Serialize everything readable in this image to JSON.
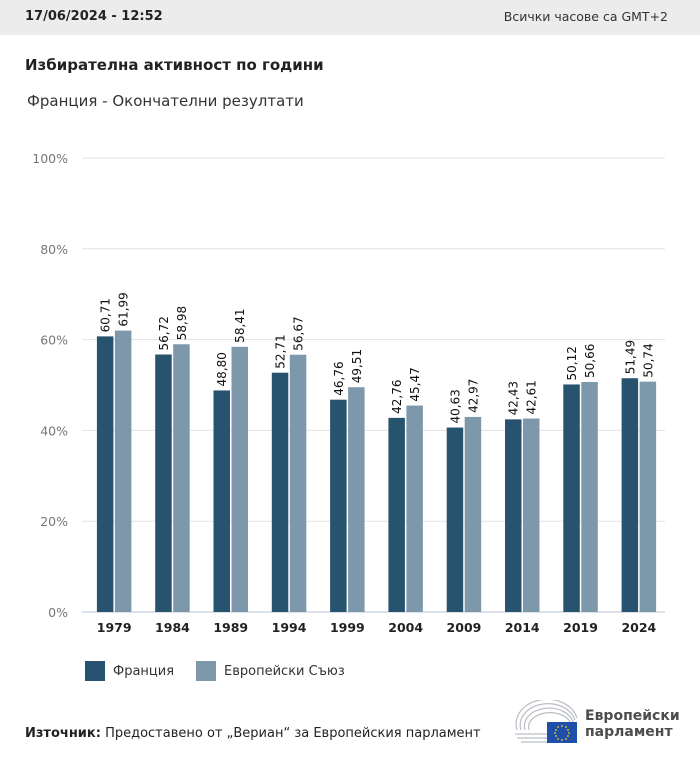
{
  "header": {
    "datetime": "17/06/2024 - 12:52",
    "timezone_note": "Всички часове са GMT+2"
  },
  "title": "Избирателна активност по години",
  "subtitle": "Франция - Окончателни резултати",
  "legend": [
    {
      "label": "Франция",
      "color": "#27536f"
    },
    {
      "label": "Европейски Съюз",
      "color": "#7e98ab"
    }
  ],
  "source": {
    "label": "Източник:",
    "text": " Предоставено от „Вериан“ за Европейския парламент"
  },
  "logo": {
    "line1": "Европейски",
    "line2": "парламент"
  },
  "chart_data": {
    "type": "bar",
    "title": "Избирателна активност по години",
    "subtitle": "Франция - Окончателни резултати",
    "xlabel": "",
    "ylabel": "",
    "ylim": [
      0,
      100
    ],
    "yticks": [
      "0%",
      "20%",
      "40%",
      "60%",
      "80%",
      "100%"
    ],
    "ytick_values": [
      0,
      20,
      40,
      60,
      80,
      100
    ],
    "grid": true,
    "legend_position": "bottom-left",
    "categories": [
      "1979",
      "1984",
      "1989",
      "1994",
      "1999",
      "2004",
      "2009",
      "2014",
      "2019",
      "2024"
    ],
    "series": [
      {
        "name": "Франция",
        "color": "#27536f",
        "values": [
          60.71,
          56.72,
          48.8,
          52.71,
          46.76,
          42.76,
          40.63,
          42.43,
          50.12,
          51.49
        ],
        "labels": [
          "60,71",
          "56,72",
          "48,80",
          "52,71",
          "46,76",
          "42,76",
          "40,63",
          "42,43",
          "50,12",
          "51,49"
        ]
      },
      {
        "name": "Европейски Съюз",
        "color": "#7e98ab",
        "values": [
          61.99,
          58.98,
          58.41,
          56.67,
          49.51,
          45.47,
          42.97,
          42.61,
          50.66,
          50.74
        ],
        "labels": [
          "61,99",
          "58,98",
          "58,41",
          "56,67",
          "49,51",
          "45,47",
          "42,97",
          "42,61",
          "50,66",
          "50,74"
        ]
      }
    ]
  }
}
